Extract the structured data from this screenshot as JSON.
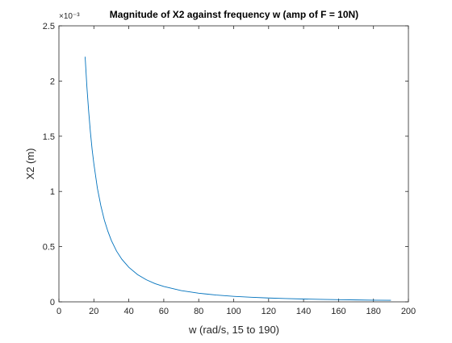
{
  "chart_data": {
    "type": "line",
    "title": "Magnitude of X2 against frequency w (amp of F = 10N)",
    "xlabel": "w (rad/s, 15 to 190)",
    "ylabel": "X2 (m)",
    "y_exponent_label": "×10⁻³",
    "xlim": [
      0,
      200
    ],
    "ylim": [
      0,
      0.0025
    ],
    "x_ticks": [
      0,
      20,
      40,
      60,
      80,
      100,
      120,
      140,
      160,
      180,
      200
    ],
    "x_tick_labels": [
      "0",
      "20",
      "40",
      "60",
      "80",
      "100",
      "120",
      "140",
      "160",
      "180",
      "200"
    ],
    "y_ticks": [
      0,
      0.0005,
      0.001,
      0.0015,
      0.002,
      0.0025
    ],
    "y_tick_labels": [
      "0",
      "0.5",
      "1",
      "1.5",
      "2",
      "2.5"
    ],
    "grid": false,
    "legend": "none",
    "series": [
      {
        "color": "#0072bd",
        "x": [
          15,
          16,
          17,
          18,
          19,
          20,
          22,
          24,
          26,
          28,
          30,
          33,
          36,
          40,
          45,
          50,
          55,
          60,
          70,
          80,
          90,
          100,
          110,
          120,
          130,
          140,
          150,
          160,
          170,
          180,
          190
        ],
        "y": [
          0.00222,
          0.00195,
          0.00173,
          0.00154,
          0.00138,
          0.00125,
          0.00103,
          0.00087,
          0.00074,
          0.00064,
          0.000556,
          0.000459,
          0.000386,
          0.000313,
          0.000247,
          0.0002,
          0.000165,
          0.000139,
          0.000102,
          7.8e-05,
          6.17e-05,
          5e-05,
          4.13e-05,
          3.47e-05,
          2.96e-05,
          2.55e-05,
          2.22e-05,
          1.95e-05,
          1.73e-05,
          1.54e-05,
          1.38e-05
        ]
      }
    ]
  }
}
